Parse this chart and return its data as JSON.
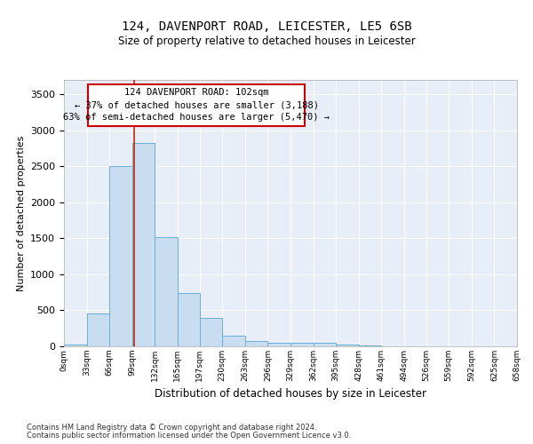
{
  "title1": "124, DAVENPORT ROAD, LEICESTER, LE5 6SB",
  "title2": "Size of property relative to detached houses in Leicester",
  "xlabel": "Distribution of detached houses by size in Leicester",
  "ylabel": "Number of detached properties",
  "bar_color": "#c9ddf0",
  "bar_edge_color": "#6baed6",
  "background_color": "#e8eef8",
  "grid_color": "#ffffff",
  "annotation_box_edgecolor": "#cc0000",
  "annotation_line1": "124 DAVENPORT ROAD: 102sqm",
  "annotation_line2": "← 37% of detached houses are smaller (3,188)",
  "annotation_line3": "63% of semi-detached houses are larger (5,470) →",
  "property_line_x": 102,
  "bin_edges": [
    0,
    33,
    66,
    99,
    132,
    165,
    197,
    230,
    263,
    296,
    329,
    362,
    395,
    428,
    461,
    494,
    526,
    559,
    592,
    625,
    658
  ],
  "bin_labels": [
    "0sqm",
    "33sqm",
    "66sqm",
    "99sqm",
    "132sqm",
    "165sqm",
    "197sqm",
    "230sqm",
    "263sqm",
    "296sqm",
    "329sqm",
    "362sqm",
    "395sqm",
    "428sqm",
    "461sqm",
    "494sqm",
    "526sqm",
    "559sqm",
    "592sqm",
    "625sqm",
    "658sqm"
  ],
  "bar_heights": [
    20,
    460,
    2500,
    2820,
    1520,
    740,
    390,
    145,
    70,
    50,
    50,
    50,
    25,
    15,
    5,
    0,
    0,
    0,
    0,
    0
  ],
  "ylim": [
    0,
    3700
  ],
  "yticks": [
    0,
    500,
    1000,
    1500,
    2000,
    2500,
    3000,
    3500
  ],
  "footer1": "Contains HM Land Registry data © Crown copyright and database right 2024.",
  "footer2": "Contains public sector information licensed under the Open Government Licence v3.0."
}
